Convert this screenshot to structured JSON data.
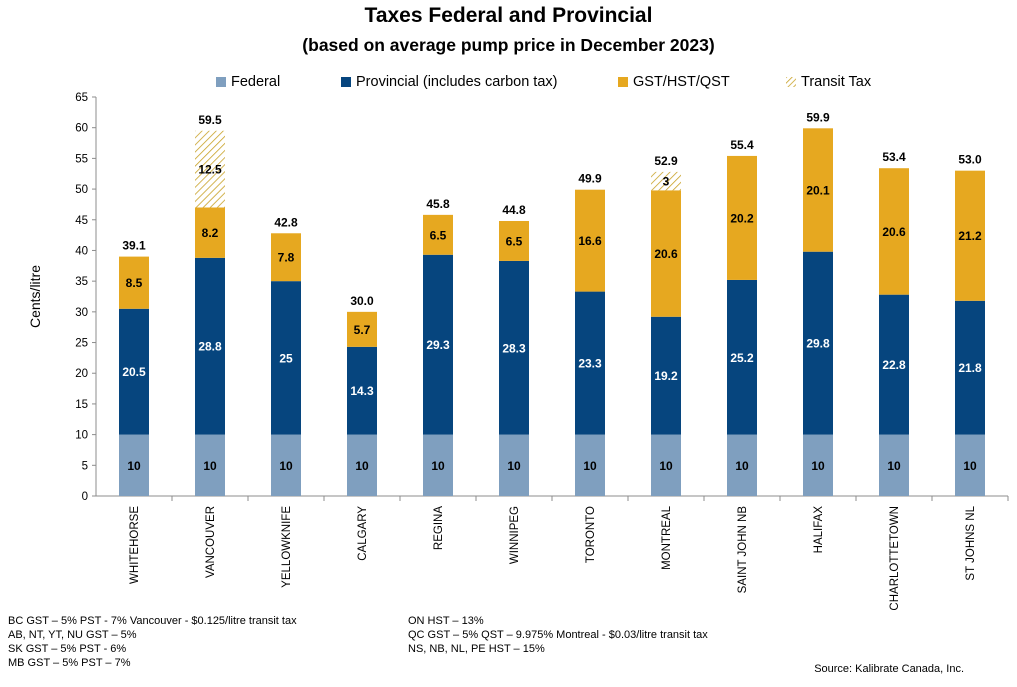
{
  "chart_data": {
    "type": "bar",
    "stacked": true,
    "title": "Taxes Federal and Provincial",
    "subtitle": "(based on average pump price in December 2023)",
    "ylabel": "Cents/litre",
    "ylim": [
      0,
      65
    ],
    "yticks": [
      0,
      5,
      10,
      15,
      20,
      25,
      30,
      35,
      40,
      45,
      50,
      55,
      60,
      65
    ],
    "categories": [
      "WHITEHORSE",
      "VANCOUVER",
      "YELLOWKNIFE",
      "CALGARY",
      "REGINA",
      "WINNIPEG",
      "TORONTO",
      "MONTREAL",
      "SAINT JOHN NB",
      "HALIFAX",
      "CHARLOTTETOWN",
      "ST JOHNS NL"
    ],
    "series": [
      {
        "name": "Federal",
        "color": "#7F9FBF",
        "values": [
          10,
          10,
          10,
          10,
          10,
          10,
          10,
          10,
          10,
          10,
          10,
          10
        ],
        "labels": [
          "10",
          "10",
          "10",
          "10",
          "10",
          "10",
          "10",
          "10",
          "10",
          "10",
          "10",
          "10"
        ],
        "label_color": "#000000"
      },
      {
        "name": "Provincial (includes carbon tax)",
        "color": "#06457E",
        "values": [
          20.5,
          28.8,
          25,
          14.3,
          29.3,
          28.3,
          23.3,
          19.2,
          25.2,
          29.8,
          22.8,
          21.8
        ],
        "labels": [
          "20.5",
          "28.8",
          "25",
          "14.3",
          "29.3",
          "28.3",
          "23.3",
          "19.2",
          "25.2",
          "29.8",
          "22.8",
          "21.8"
        ],
        "label_color": "#ffffff"
      },
      {
        "name": "GST/HST/QST",
        "color": "#E6A820",
        "values": [
          8.5,
          8.2,
          7.8,
          5.7,
          6.5,
          6.5,
          16.6,
          20.6,
          20.2,
          20.1,
          20.6,
          21.2
        ],
        "labels": [
          "8.5",
          "8.2",
          "7.8",
          "5.7",
          "6.5",
          "6.5",
          "16.6",
          "20.6",
          "20.2",
          "20.1",
          "20.6",
          "21.2"
        ],
        "label_color": "#000000"
      },
      {
        "name": "Transit Tax",
        "color": "#C9A227",
        "pattern": "hatch",
        "values": [
          0,
          12.5,
          0,
          0,
          0,
          0,
          0,
          3,
          0,
          0,
          0,
          0
        ],
        "labels": [
          "",
          "12.5",
          "",
          "",
          "",
          "",
          "",
          "3",
          "",
          "",
          "",
          ""
        ],
        "label_color": "#000000"
      }
    ],
    "totals": [
      "39.1",
      "59.5",
      "42.8",
      "30.0",
      "45.8",
      "44.8",
      "49.9",
      "52.9",
      "55.4",
      "59.9",
      "53.4",
      "53.0"
    ],
    "legend_position": "top",
    "grid": false
  },
  "notes_left": [
    "BC GST – 5% PST - 7% Vancouver - $0.125/litre transit tax",
    "AB, NT, YT, NU GST – 5%",
    "SK GST – 5% PST - 6%",
    "MB GST – 5% PST – 7%"
  ],
  "notes_right": [
    "ON HST – 13%",
    "QC GST – 5% QST – 9.975% Montreal - $0.03/litre transit tax",
    "NS, NB, NL, PE HST – 15%"
  ],
  "source": "Source:  Kalibrate Canada, Inc."
}
